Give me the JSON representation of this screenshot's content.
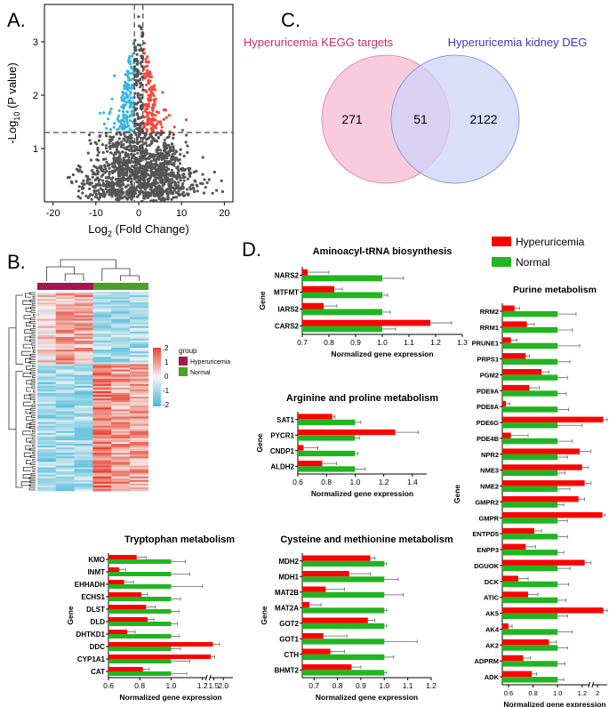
{
  "panel_labels": {
    "a": "A.",
    "b": "B.",
    "c": "C.",
    "d": "D."
  },
  "colors": {
    "hyper": "#ff0000",
    "normal": "#21b521",
    "up": "#f04a3a",
    "down": "#3ab5e0",
    "ns": "#555555",
    "venn_left": "#f7c6d9",
    "venn_right": "#cfd3f7",
    "venn_mid": "#d7b7e0",
    "venn_left_text": "#c0306a",
    "venn_right_text": "#3a3aa8",
    "heat_high": "#e8412e",
    "heat_low": "#44b8d8",
    "heat_mid": "#f4f4f4",
    "group_hyper": "#a3164f",
    "group_normal": "#4aa02a"
  },
  "chart_data": [
    {
      "id": "volcano",
      "type": "scatter",
      "title": "",
      "xlabel": "Log",
      "xlabel_sub": "2",
      "xlabel_rest": " (Fold Change)",
      "ylabel": "-Log",
      "ylabel_sub": "10",
      "ylabel_rest": " (P value)",
      "xlim": [
        -22,
        22
      ],
      "ylim": [
        0,
        3.7
      ],
      "xticks": [
        "-20",
        "-10",
        "0",
        "10",
        "20"
      ],
      "yticks": [
        "1",
        "2",
        "3"
      ],
      "thresholds": {
        "fc": [
          -1,
          1
        ],
        "p": 1.3
      }
    },
    {
      "id": "venn",
      "type": "venn",
      "sets": [
        "Hyperuricemia KEGG targets",
        "Hyperuricemia kidney DEG"
      ],
      "values": {
        "left_only": "271",
        "both": "51",
        "right_only": "2122"
      }
    },
    {
      "id": "heatmap",
      "type": "heatmap",
      "legend_title": "group",
      "groups": [
        "Hyperuricemia",
        "Normal"
      ],
      "scale_ticks": [
        "2",
        "1",
        "0",
        "-1",
        "-2"
      ]
    },
    {
      "id": "aminoacyl",
      "type": "bar",
      "title": "Aminoacyl-tRNA biosynthesis",
      "xlabel": "Normalized gene expression",
      "ylabel": "Gene",
      "categories": [
        "NARS2",
        "MTFMT",
        "IARS2",
        "CARS2"
      ],
      "series": [
        {
          "name": "Hyperuricemia",
          "values": [
            0.72,
            0.82,
            0.78,
            1.18
          ],
          "errors": [
            0.08,
            0.03,
            0.05,
            0.08
          ]
        },
        {
          "name": "Normal",
          "values": [
            1.0,
            1.0,
            1.0,
            1.0
          ],
          "errors": [
            0.08,
            0.02,
            0.03,
            0.05
          ]
        }
      ],
      "xlim": [
        0.7,
        1.3
      ],
      "xticks": [
        0.7,
        0.8,
        0.9,
        1.0,
        1.1,
        1.2,
        1.3
      ],
      "xtick_labels": [
        "0.7",
        "0.8",
        "0.9",
        "1.0",
        "1.1",
        "1.2",
        "1.3"
      ]
    },
    {
      "id": "arginine",
      "type": "bar",
      "title": "Arginine and proline metabolism",
      "xlabel": "Normalized gene expression",
      "ylabel": "Gene",
      "categories": [
        "SAT1",
        "PYCR1",
        "CNDP1",
        "ALDH2"
      ],
      "series": [
        {
          "name": "Hyperuricemia",
          "values": [
            0.84,
            1.28,
            0.64,
            0.77
          ],
          "errors": [
            0.02,
            0.16,
            0.1,
            0.1
          ]
        },
        {
          "name": "Normal",
          "values": [
            1.0,
            1.0,
            1.0,
            1.0
          ],
          "errors": [
            0.04,
            0.03,
            0.02,
            0.07
          ]
        }
      ],
      "xlim": [
        0.6,
        1.5
      ],
      "xticks": [
        0.6,
        0.8,
        1.0,
        1.2,
        1.4
      ],
      "xtick_labels": [
        "0.6",
        "0.8",
        "1.0",
        "1.2",
        "1.4"
      ]
    },
    {
      "id": "tryptophan",
      "type": "bar",
      "title": "Tryptophan metabolism",
      "xlabel": "Normalized gene expression",
      "ylabel": "Gene",
      "categories": [
        "KMO",
        "INMT",
        "EHHADH",
        "ECHS1",
        "DLST",
        "DLD",
        "DHTKD1",
        "DDC",
        "CYP1A1",
        "CAT"
      ],
      "series": [
        {
          "name": "Hyperuricemia",
          "values": [
            0.78,
            0.67,
            0.7,
            0.81,
            0.84,
            0.85,
            0.72,
            1.45,
            1.35,
            0.82
          ],
          "errors": [
            0.06,
            0.04,
            0.06,
            0.04,
            0.06,
            0.04,
            0.05,
            0.35,
            0.2,
            0.04
          ]
        },
        {
          "name": "Normal",
          "values": [
            1.0,
            1.0,
            1.0,
            1.0,
            1.0,
            1.0,
            1.0,
            1.0,
            1.0,
            1.0
          ],
          "errors": [
            0.09,
            0.12,
            0.2,
            0.06,
            0.05,
            0.04,
            0.05,
            0.06,
            0.12,
            0.1
          ]
        }
      ],
      "xlim": [
        0.6,
        2.5
      ],
      "axis_break": [
        1.22,
        1.35
      ],
      "xticks": [
        0.6,
        0.8,
        1.0,
        1.2,
        1.5,
        2.0
      ],
      "xtick_labels": [
        "0.6",
        "0.8",
        "1.0",
        "1.2",
        "1.5",
        "2.0"
      ]
    },
    {
      "id": "cysteine",
      "type": "bar",
      "title": "Cysteine and methionine metabolism",
      "xlabel": "Normalized gene expression",
      "ylabel": "Gene",
      "categories": [
        "MDH2",
        "MDH1",
        "MAT2B",
        "MAT2A",
        "GOT2",
        "GOT1",
        "CTH",
        "BHMT2"
      ],
      "series": [
        {
          "name": "Hyperuricemia",
          "values": [
            0.94,
            0.85,
            0.75,
            0.68,
            0.93,
            0.74,
            0.77,
            0.86
          ],
          "errors": [
            0.02,
            0.09,
            0.08,
            0.05,
            0.03,
            0.1,
            0.06,
            0.04
          ]
        },
        {
          "name": "Normal",
          "values": [
            1.0,
            1.0,
            1.0,
            1.0,
            1.0,
            1.0,
            1.0,
            1.0
          ],
          "errors": [
            0.01,
            0.06,
            0.08,
            0.01,
            0.01,
            0.14,
            0.04,
            0.01
          ]
        }
      ],
      "xlim": [
        0.65,
        1.2
      ],
      "xticks": [
        0.7,
        0.8,
        0.9,
        1.0,
        1.1,
        1.2
      ],
      "xtick_labels": [
        "0.7",
        "0.8",
        "0.9",
        "1.0",
        "1.1",
        "1.2"
      ]
    },
    {
      "id": "purine",
      "type": "bar",
      "title": "Purine metabolism",
      "xlabel": "Normalized gene expression",
      "ylabel": "Gene",
      "categories": [
        "RRM2",
        "RRM1",
        "PRUNE1",
        "PRPS1",
        "PGM2",
        "PDE9A",
        "PDE8A",
        "PDE6G",
        "PDE4B",
        "NPR2",
        "NME3",
        "NME2",
        "GMPR2",
        "GMPR",
        "ENTPD5",
        "ENPP3",
        "DGUOK",
        "DCK",
        "ATIC",
        "AK5",
        "AK4",
        "AK2",
        "ADPRM",
        "ADK"
      ],
      "series": [
        {
          "name": "Hyperuricemia",
          "values": [
            0.65,
            0.75,
            0.62,
            0.74,
            0.87,
            0.77,
            0.58,
            2.6,
            0.62,
            1.18,
            1.2,
            1.22,
            1.17,
            2.5,
            0.81,
            0.74,
            1.22,
            0.68,
            0.76,
            2.6,
            0.6,
            0.93,
            0.72,
            0.79
          ],
          "errors": [
            0.04,
            0.06,
            0.05,
            0.03,
            0.06,
            0.08,
            0.03,
            0.5,
            0.14,
            0.08,
            0.05,
            0.04,
            0.05,
            0.3,
            0.06,
            0.08,
            0.04,
            0.08,
            0.08,
            0.5,
            0.03,
            0.06,
            0.06,
            0.04
          ]
        },
        {
          "name": "Normal",
          "values": [
            1.0,
            1.0,
            1.0,
            1.0,
            1.0,
            1.0,
            1.0,
            1.0,
            1.0,
            1.0,
            1.0,
            1.0,
            1.0,
            1.0,
            1.0,
            1.0,
            1.0,
            1.0,
            1.0,
            1.0,
            1.0,
            1.0,
            1.0,
            1.0
          ],
          "errors": [
            0.15,
            0.12,
            0.18,
            0.1,
            0.08,
            0.07,
            0.09,
            0.2,
            0.12,
            0.08,
            0.06,
            0.1,
            0.05,
            0.08,
            0.08,
            0.05,
            0.1,
            0.09,
            0.07,
            0.08,
            0.12,
            0.08,
            0.06,
            0.05
          ]
        }
      ],
      "xlim": [
        0.55,
        3.0
      ],
      "axis_break": [
        1.25,
        1.6
      ],
      "xticks": [
        0.6,
        0.8,
        1.0,
        1.2,
        2.0
      ],
      "xtick_labels": [
        "0.6",
        "0.8",
        "1.0",
        "1.2",
        "2"
      ]
    }
  ],
  "legend": {
    "items": [
      "Hyperuricemia",
      "Normal"
    ]
  }
}
